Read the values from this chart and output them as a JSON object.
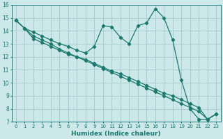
{
  "xlabel": "Humidex (Indice chaleur)",
  "ylabel": "",
  "xlim": [
    -0.5,
    23.5
  ],
  "ylim": [
    7,
    16
  ],
  "xticks": [
    0,
    1,
    2,
    3,
    4,
    5,
    6,
    7,
    8,
    9,
    10,
    11,
    12,
    13,
    14,
    15,
    16,
    17,
    18,
    19,
    20,
    21,
    22,
    23
  ],
  "yticks": [
    7,
    8,
    9,
    10,
    11,
    12,
    13,
    14,
    15,
    16
  ],
  "background_color": "#cce8e8",
  "line_color": "#1a7a6e",
  "grid_color": "#aacece",
  "line1_x": [
    0,
    1,
    2,
    3,
    4,
    5,
    6,
    7,
    8,
    9,
    10,
    11,
    12,
    13,
    14,
    15,
    16,
    17,
    18,
    19,
    20,
    21,
    22,
    23
  ],
  "line1_y": [
    14.8,
    14.2,
    13.9,
    13.6,
    13.3,
    13.0,
    12.8,
    12.5,
    12.3,
    12.8,
    14.4,
    14.3,
    13.5,
    13.0,
    14.4,
    14.6,
    15.7,
    15.0,
    13.3,
    10.2,
    8.0,
    7.2,
    7.2,
    7.6
  ],
  "line2_x": [
    0,
    1,
    2,
    3,
    4,
    5,
    6,
    7,
    8,
    9,
    10,
    11,
    12,
    13,
    14,
    15,
    16,
    17,
    18,
    19,
    20,
    21,
    22,
    23
  ],
  "line2_y": [
    14.8,
    14.2,
    13.4,
    13.1,
    12.8,
    12.5,
    12.2,
    12.0,
    11.8,
    11.5,
    11.2,
    10.9,
    10.7,
    10.4,
    10.1,
    9.8,
    9.5,
    9.2,
    9.0,
    8.7,
    8.4,
    8.1,
    7.2,
    7.6
  ],
  "line3_x": [
    0,
    1,
    2,
    3,
    4,
    5,
    6,
    7,
    8,
    9,
    10,
    11,
    12,
    13,
    14,
    15,
    16,
    17,
    18,
    19,
    20,
    21,
    22,
    23
  ],
  "line3_y": [
    14.8,
    14.2,
    13.6,
    13.3,
    13.0,
    12.6,
    12.3,
    12.0,
    11.7,
    11.4,
    11.1,
    10.8,
    10.5,
    10.2,
    9.9,
    9.6,
    9.3,
    9.0,
    8.7,
    8.4,
    8.1,
    7.8,
    7.2,
    7.6
  ]
}
